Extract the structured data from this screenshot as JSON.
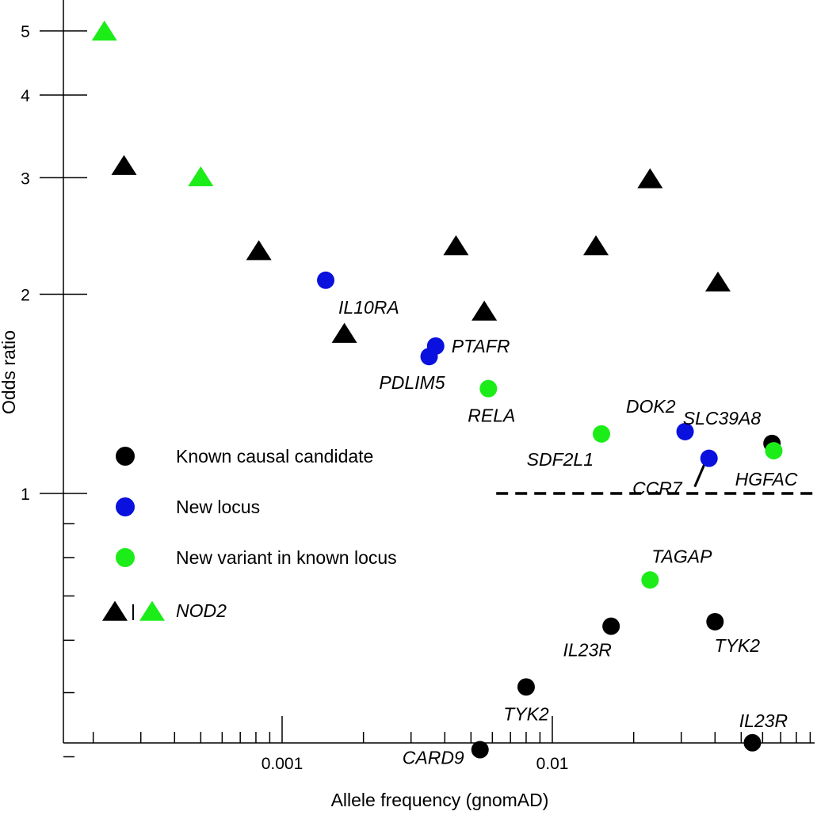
{
  "chart_data": {
    "type": "scatter",
    "xlabel": "Allele frequency (gnomAD)",
    "ylabel": "Odds ratio",
    "x_scale": "log",
    "y_scale": "log",
    "xlim": [
      0.00015,
      0.09
    ],
    "ylim": [
      0.345,
      6.0
    ],
    "x_tick_labels": [
      {
        "value": 0.001,
        "label": "0.001"
      },
      {
        "value": 0.01,
        "label": "0.01"
      }
    ],
    "y_tick_labels": [
      {
        "value": 1,
        "label": "1"
      },
      {
        "value": 2,
        "label": "2"
      },
      {
        "value": 3,
        "label": "3"
      },
      {
        "value": 4,
        "label": "4"
      },
      {
        "value": 5,
        "label": "5"
      }
    ],
    "reference_line": {
      "y": 1.0,
      "x_start": 0.0062,
      "x_end": 0.09,
      "style": "dashed"
    },
    "colors": {
      "known": "#000000",
      "new_locus": "#0a10dd",
      "new_variant": "#1ced19",
      "nod2_black": "#000000",
      "nod2_green": "#1ced19"
    },
    "legend": {
      "placement": "center-left",
      "items": [
        {
          "label": "Known causal candidate",
          "marker": "circle",
          "color": "#000000"
        },
        {
          "label": "New locus",
          "marker": "circle",
          "color": "#0a10dd"
        },
        {
          "label": "New variant in known locus",
          "marker": "circle",
          "color": "#1ced19"
        },
        {
          "label": "NOD2",
          "marker": "triangle-pair",
          "color": "#000000",
          "color2": "#1ced19"
        }
      ]
    },
    "series": [
      {
        "name": "Known causal candidate",
        "marker": "circle",
        "color": "#000000",
        "points": [
          {
            "x": 0.0054,
            "y": 0.41,
            "label": "CARD9",
            "label_pos": "left-below"
          },
          {
            "x": 0.008,
            "y": 0.51,
            "label": "TYK2",
            "label_pos": "below"
          },
          {
            "x": 0.0165,
            "y": 0.63,
            "label": "IL23R",
            "label_pos": "below"
          },
          {
            "x": 0.04,
            "y": 0.64,
            "label": "TYK2",
            "label_pos": "below-right"
          },
          {
            "x": 0.055,
            "y": 0.42,
            "label": "IL23R",
            "label_pos": "above"
          },
          {
            "x": 0.065,
            "y": 1.19,
            "label": "SLC39A8",
            "label_pos": "above-left"
          }
        ]
      },
      {
        "name": "New locus",
        "marker": "circle",
        "color": "#0a10dd",
        "points": [
          {
            "x": 0.00145,
            "y": 2.1,
            "label": "IL10RA",
            "label_pos": "below-right"
          },
          {
            "x": 0.0037,
            "y": 1.67,
            "label": "PTAFR",
            "label_pos": "right"
          },
          {
            "x": 0.0035,
            "y": 1.61,
            "label": "PDLIM5",
            "label_pos": "below-left"
          },
          {
            "x": 0.031,
            "y": 1.24,
            "label": "DOK2",
            "label_pos": "above-left"
          },
          {
            "x": 0.038,
            "y": 1.13,
            "label": "CCR7",
            "label_pos": "below-left-leader"
          }
        ]
      },
      {
        "name": "New variant in known locus",
        "marker": "circle",
        "color": "#1ced19",
        "points": [
          {
            "x": 0.0058,
            "y": 1.44,
            "label": "RELA",
            "label_pos": "below"
          },
          {
            "x": 0.0152,
            "y": 1.23,
            "label": "SDF2L1",
            "label_pos": "below-left"
          },
          {
            "x": 0.023,
            "y": 0.74,
            "label": "TAGAP",
            "label_pos": "above"
          },
          {
            "x": 0.066,
            "y": 1.16,
            "label": "HGFAC",
            "label_pos": "below-left"
          }
        ]
      },
      {
        "name": "NOD2",
        "marker": "triangle",
        "color": "#000000",
        "points": [
          {
            "x": 0.00026,
            "y": 3.12
          },
          {
            "x": 0.00082,
            "y": 2.32
          },
          {
            "x": 0.0017,
            "y": 1.74
          },
          {
            "x": 0.0044,
            "y": 2.36
          },
          {
            "x": 0.0056,
            "y": 1.88
          },
          {
            "x": 0.0145,
            "y": 2.36
          },
          {
            "x": 0.023,
            "y": 2.98
          },
          {
            "x": 0.041,
            "y": 2.08
          }
        ]
      },
      {
        "name": "NOD2",
        "marker": "triangle",
        "color": "#1ced19",
        "points": [
          {
            "x": 0.00022,
            "y": 4.98
          },
          {
            "x": 0.0005,
            "y": 3.0
          }
        ]
      }
    ]
  }
}
